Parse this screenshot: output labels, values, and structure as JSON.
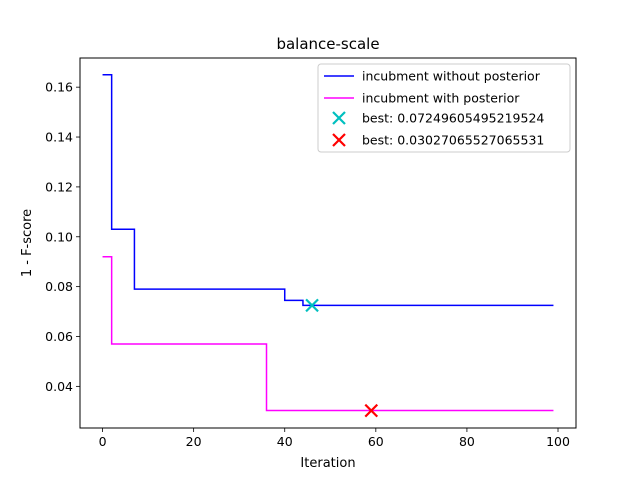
{
  "chart_data": {
    "type": "line",
    "title": "balance-scale",
    "xlabel": "Iteration",
    "ylabel": "1 - F-score",
    "xlim": [
      -4.95,
      103.95
    ],
    "ylim": [
      0.0233,
      0.1717
    ],
    "xticks": [
      0,
      20,
      40,
      60,
      80,
      100
    ],
    "yticks": [
      0.04,
      0.06,
      0.08,
      0.1,
      0.12,
      0.14,
      0.16
    ],
    "ytick_labels": [
      "0.04",
      "0.06",
      "0.08",
      "0.10",
      "0.12",
      "0.14",
      "0.16"
    ],
    "grid": false,
    "legend_position": "top-right",
    "series": [
      {
        "name": "incubment without posterior",
        "color": "#0000ff",
        "style": "step-post",
        "x": [
          0,
          2,
          3,
          7,
          8,
          40,
          41,
          44,
          99
        ],
        "y": [
          0.165,
          0.103,
          0.103,
          0.079,
          0.079,
          0.0745,
          0.0745,
          0.0725,
          0.0725
        ]
      },
      {
        "name": "incubment with posterior",
        "color": "#ff00ff",
        "style": "step-post",
        "x": [
          0,
          1,
          2,
          35,
          36,
          99
        ],
        "y": [
          0.092,
          0.092,
          0.057,
          0.057,
          0.0303,
          0.0303
        ]
      }
    ],
    "markers": [
      {
        "label": "best: 0.07249605495219524",
        "x": 46,
        "y": 0.07249605495219524,
        "color": "#00bfbf",
        "shape": "x"
      },
      {
        "label": "best: 0.03027065527065531",
        "x": 59,
        "y": 0.03027065527065531,
        "color": "#ff0000",
        "shape": "x"
      }
    ]
  }
}
